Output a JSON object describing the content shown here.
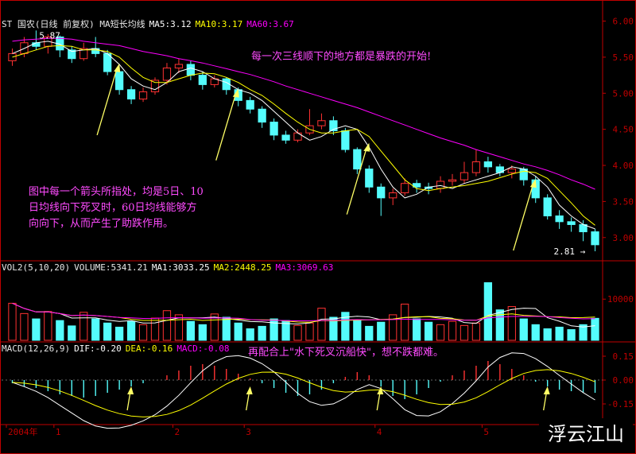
{
  "header": {
    "stock": "ST 国农(日线 前复权) MA短长均线",
    "ma5": "MA5:3.12",
    "ma10": "MA10:3.17",
    "ma60": "MA60:3.67"
  },
  "vol_header": {
    "label": "VOL2(5,10,20)",
    "volume": "VOLUME:5341.21",
    "ma1": "MA1:3033.25",
    "ma2": "MA2:2448.25",
    "ma3": "MA3:3069.63"
  },
  "macd_header": {
    "label": "MACD(12,26,9)",
    "dif": "DIF:-0.20",
    "dea": "DEA:-0.16",
    "macd": "MACD:-0.08"
  },
  "annotations": {
    "top": "每一次三线顺下的地方都是暴跌的开始!",
    "left_1": "图中每一个箭头所指处，均是5日、10",
    "left_2": "日均线向下死叉时，60日均线能够方",
    "left_3": "向向下，从而产生了助跌作用。",
    "macd": "再配合上\"水下死叉沉船快\"，想不跌都难。",
    "high_label": "5.87",
    "low_label": "2.81"
  },
  "watermark": "浮云江山",
  "colors": {
    "up": "#ff3232",
    "down": "#54fcfc",
    "ma5": "#ffffff",
    "ma10": "#ffff00",
    "ma60": "#ff00ff",
    "arrow": "#ffff66",
    "axis": "#c00000",
    "annotation": "#ff4bff"
  },
  "chart_data": [
    {
      "type": "candlestick",
      "title": "ST 国农(日线 前复权)",
      "y_ticks": [
        "6.00",
        "5.50",
        "5.00",
        "4.50",
        "4.00",
        "3.50",
        "3.00"
      ],
      "ylim": [
        2.7,
        6.05
      ],
      "x_ticks": [
        "2004年",
        "1",
        "2",
        "3",
        "4",
        "5",
        "6"
      ],
      "series": [
        {
          "name": "MA5",
          "values": [
            5.55,
            5.62,
            5.7,
            5.72,
            5.68,
            5.58,
            5.6,
            5.62,
            5.55,
            5.4,
            5.2,
            5.1,
            5.05,
            5.15,
            5.3,
            5.35,
            5.3,
            5.2,
            5.15,
            5.05,
            5.0,
            4.9,
            4.75,
            4.6,
            4.45,
            4.35,
            4.4,
            4.5,
            4.55,
            4.5,
            4.25,
            3.95,
            3.7,
            3.55,
            3.6,
            3.7,
            3.72,
            3.68,
            3.75,
            3.8,
            3.85,
            3.9,
            3.98,
            3.95,
            3.85,
            3.7,
            3.45,
            3.3,
            3.18,
            3.12
          ]
        },
        {
          "name": "MA10",
          "values": [
            5.5,
            5.55,
            5.6,
            5.65,
            5.66,
            5.65,
            5.6,
            5.6,
            5.58,
            5.5,
            5.35,
            5.22,
            5.15,
            5.15,
            5.2,
            5.25,
            5.28,
            5.27,
            5.22,
            5.15,
            5.05,
            4.97,
            4.85,
            4.72,
            4.6,
            4.5,
            4.45,
            4.45,
            4.48,
            4.5,
            4.4,
            4.2,
            4.0,
            3.8,
            3.68,
            3.65,
            3.68,
            3.7,
            3.72,
            3.75,
            3.78,
            3.83,
            3.88,
            3.92,
            3.9,
            3.82,
            3.65,
            3.48,
            3.3,
            3.17
          ]
        },
        {
          "name": "MA60",
          "values": [
            5.72,
            5.74,
            5.75,
            5.76,
            5.76,
            5.75,
            5.72,
            5.7,
            5.68,
            5.66,
            5.62,
            5.58,
            5.55,
            5.52,
            5.48,
            5.45,
            5.42,
            5.38,
            5.34,
            5.3,
            5.26,
            5.21,
            5.16,
            5.1,
            5.05,
            5.0,
            4.95,
            4.9,
            4.85,
            4.8,
            4.74,
            4.68,
            4.62,
            4.56,
            4.5,
            4.44,
            4.38,
            4.33,
            4.28,
            4.22,
            4.17,
            4.12,
            4.07,
            4.02,
            3.98,
            3.93,
            3.87,
            3.8,
            3.74,
            3.67
          ]
        }
      ],
      "candles": [
        [
          5.45,
          5.55,
          5.62,
          5.38
        ],
        [
          5.55,
          5.7,
          5.78,
          5.5
        ],
        [
          5.7,
          5.65,
          5.87,
          5.6
        ],
        [
          5.65,
          5.78,
          5.82,
          5.55
        ],
        [
          5.78,
          5.6,
          5.8,
          5.5
        ],
        [
          5.6,
          5.48,
          5.65,
          5.42
        ],
        [
          5.48,
          5.62,
          5.7,
          5.45
        ],
        [
          5.62,
          5.55,
          5.78,
          5.5
        ],
        [
          5.55,
          5.3,
          5.6,
          5.25
        ],
        [
          5.3,
          5.05,
          5.35,
          4.98
        ],
        [
          5.05,
          4.92,
          5.1,
          4.85
        ],
        [
          4.92,
          5.02,
          5.08,
          4.88
        ],
        [
          5.02,
          5.18,
          5.22,
          4.98
        ],
        [
          5.18,
          5.35,
          5.42,
          5.12
        ],
        [
          5.35,
          5.4,
          5.48,
          5.28
        ],
        [
          5.4,
          5.25,
          5.45,
          5.18
        ],
        [
          5.25,
          5.12,
          5.3,
          5.05
        ],
        [
          5.12,
          5.2,
          5.25,
          5.08
        ],
        [
          5.2,
          5.05,
          5.22,
          4.98
        ],
        [
          5.05,
          4.9,
          5.08,
          4.82
        ],
        [
          4.9,
          4.78,
          4.95,
          4.72
        ],
        [
          4.78,
          4.6,
          4.82,
          4.52
        ],
        [
          4.6,
          4.42,
          4.65,
          4.35
        ],
        [
          4.42,
          4.35,
          4.48,
          4.3
        ],
        [
          4.35,
          4.45,
          4.5,
          4.32
        ],
        [
          4.45,
          4.55,
          4.78,
          4.42
        ],
        [
          4.55,
          4.62,
          4.72,
          4.5
        ],
        [
          4.62,
          4.48,
          4.68,
          4.42
        ],
        [
          4.48,
          4.22,
          4.52,
          4.18
        ],
        [
          4.22,
          3.95,
          4.25,
          3.88
        ],
        [
          3.95,
          3.7,
          4.0,
          3.62
        ],
        [
          3.7,
          3.55,
          3.75,
          3.3
        ],
        [
          3.55,
          3.62,
          3.68,
          3.45
        ],
        [
          3.62,
          3.75,
          3.82,
          3.58
        ],
        [
          3.75,
          3.7,
          3.8,
          3.62
        ],
        [
          3.7,
          3.68,
          3.76,
          3.6
        ],
        [
          3.68,
          3.78,
          3.85,
          3.62
        ],
        [
          3.78,
          3.8,
          3.88,
          3.72
        ],
        [
          3.8,
          3.9,
          4.05,
          3.75
        ],
        [
          3.9,
          4.05,
          4.22,
          3.85
        ],
        [
          4.05,
          3.98,
          4.12,
          3.9
        ],
        [
          3.98,
          3.9,
          4.02,
          3.85
        ],
        [
          3.9,
          3.95,
          4.0,
          3.82
        ],
        [
          3.95,
          3.8,
          3.98,
          3.72
        ],
        [
          3.8,
          3.55,
          3.85,
          3.48
        ],
        [
          3.55,
          3.3,
          3.6,
          3.25
        ],
        [
          3.3,
          3.22,
          3.38,
          3.12
        ],
        [
          3.22,
          3.18,
          3.28,
          3.08
        ],
        [
          3.18,
          3.08,
          3.24,
          2.95
        ],
        [
          3.08,
          2.9,
          3.12,
          2.81
        ]
      ]
    },
    {
      "type": "bar",
      "title": "VOL2(5,10,20)",
      "y_ticks": [
        "10000"
      ],
      "ylim": [
        0,
        17000
      ],
      "values": [
        9000,
        6500,
        5200,
        7000,
        4800,
        3500,
        6800,
        5200,
        4200,
        3200,
        4600,
        3800,
        5400,
        7200,
        6200,
        4600,
        3800,
        6400,
        5600,
        4200,
        2800,
        3400,
        5200,
        4800,
        3600,
        4200,
        7800,
        5600,
        6800,
        4800,
        3400,
        4400,
        6200,
        8800,
        5200,
        4400,
        3800,
        4600,
        3600,
        4200,
        14000,
        7400,
        8200,
        5200,
        3800,
        2800,
        3200,
        2600,
        3800,
        5341
      ]
    },
    {
      "type": "bar",
      "title": "MACD(12,26,9)",
      "y_ticks": [
        "0.15",
        "0.00",
        "-0.15"
      ],
      "ylim": [
        -0.28,
        0.24
      ],
      "values": [
        -0.02,
        -0.04,
        -0.05,
        -0.07,
        -0.09,
        -0.1,
        -0.11,
        -0.1,
        -0.08,
        -0.06,
        -0.04,
        -0.02,
        0.0,
        0.03,
        0.06,
        0.09,
        0.1,
        0.09,
        0.07,
        0.04,
        0.01,
        -0.02,
        -0.05,
        -0.08,
        -0.1,
        -0.09,
        -0.06,
        -0.02,
        0.02,
        0.05,
        0.03,
        -0.04,
        -0.1,
        -0.12,
        -0.09,
        -0.05,
        -0.01,
        0.03,
        0.06,
        0.09,
        0.12,
        0.1,
        0.07,
        0.03,
        -0.01,
        -0.04,
        -0.06,
        -0.07,
        -0.08,
        -0.08
      ]
    }
  ]
}
